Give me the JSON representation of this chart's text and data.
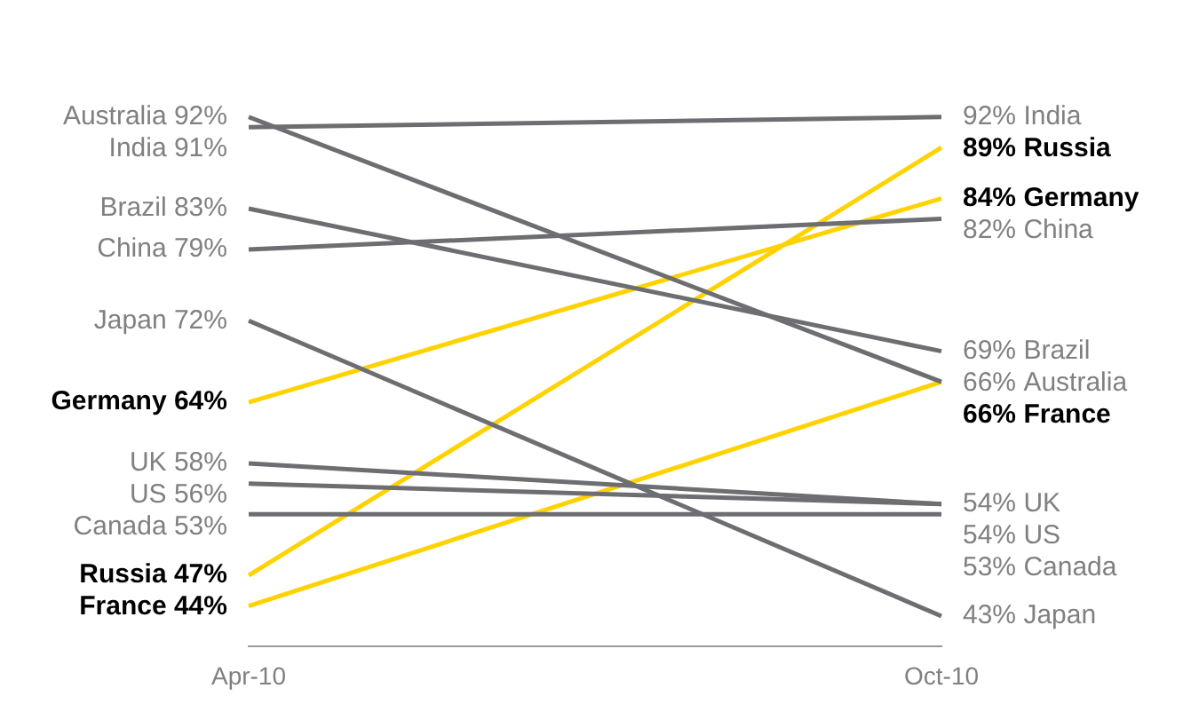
{
  "chart_data": {
    "type": "line",
    "categories": [
      "Apr-10",
      "Oct-10"
    ],
    "grid": false,
    "legend": false,
    "marker": "none",
    "tick_labels": "x",
    "series": [
      {
        "name": "Australia",
        "color": "#6d6e71",
        "values": [
          92,
          66
        ],
        "value_labels": [
          "92%",
          "66%"
        ]
      },
      {
        "name": "India",
        "color": "#6d6e71",
        "values": [
          91,
          92
        ],
        "value_labels": [
          "91%",
          "92%"
        ]
      },
      {
        "name": "Brazil",
        "color": "#6d6e71",
        "values": [
          83,
          69
        ],
        "value_labels": [
          "83%",
          "69%"
        ]
      },
      {
        "name": "China",
        "color": "#6d6e71",
        "values": [
          79,
          82
        ],
        "value_labels": [
          "79%",
          "82%"
        ]
      },
      {
        "name": "Japan",
        "color": "#6d6e71",
        "values": [
          72,
          43
        ],
        "value_labels": [
          "72%",
          "43%"
        ]
      },
      {
        "name": "Germany",
        "color": "#ffd200",
        "values": [
          64,
          84
        ],
        "value_labels": [
          "64%",
          "84%"
        ]
      },
      {
        "name": "UK",
        "color": "#6d6e71",
        "values": [
          58,
          54
        ],
        "value_labels": [
          "58%",
          "54%"
        ]
      },
      {
        "name": "US",
        "color": "#6d6e71",
        "values": [
          56,
          54
        ],
        "value_labels": [
          "56%",
          "54%"
        ]
      },
      {
        "name": "Canada",
        "color": "#6d6e71",
        "values": [
          53,
          53
        ],
        "value_labels": [
          "53%",
          "53%"
        ]
      },
      {
        "name": "Russia",
        "color": "#ffd200",
        "values": [
          47,
          89
        ],
        "value_labels": [
          "47%",
          "89%"
        ]
      },
      {
        "name": "France",
        "color": "#ffd200",
        "values": [
          44,
          66
        ],
        "value_labels": [
          "44%",
          "66%"
        ]
      }
    ]
  }
}
